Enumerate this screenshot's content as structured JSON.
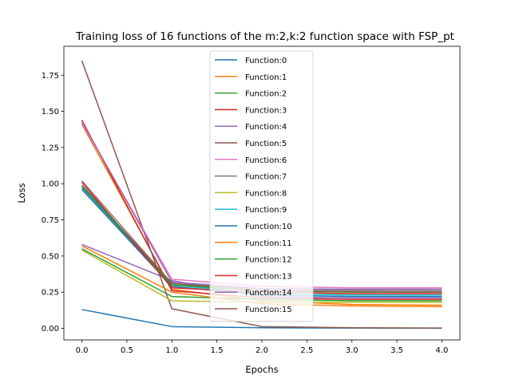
{
  "chart_data": {
    "type": "line",
    "title": "Training loss of 16 functions of the m:2,k:2 function space with FSP_pt",
    "xlabel": "Epochs",
    "ylabel": "Loss",
    "xlim": [
      -0.2,
      4.2
    ],
    "ylim": [
      -0.08,
      1.95
    ],
    "xticks": [
      "0.0",
      "0.5",
      "1.0",
      "1.5",
      "2.0",
      "2.5",
      "3.0",
      "3.5",
      "4.0"
    ],
    "yticks": [
      "0.00",
      "0.25",
      "0.50",
      "0.75",
      "1.00",
      "1.25",
      "1.50",
      "1.75"
    ],
    "grid": false,
    "legend_position": "upper-center",
    "x": [
      0,
      1,
      2,
      3,
      4
    ],
    "series": [
      {
        "name": "Function:0",
        "color": "#1f77b4",
        "values": [
          0.13,
          0.012,
          0.004,
          0.002,
          0.001
        ]
      },
      {
        "name": "Function:1",
        "color": "#ff7f0e",
        "values": [
          1.41,
          0.27,
          0.19,
          0.165,
          0.16
        ]
      },
      {
        "name": "Function:2",
        "color": "#2ca02c",
        "values": [
          0.55,
          0.22,
          0.2,
          0.19,
          0.19
        ]
      },
      {
        "name": "Function:3",
        "color": "#d62728",
        "values": [
          1.44,
          0.26,
          0.21,
          0.2,
          0.2
        ]
      },
      {
        "name": "Function:4",
        "color": "#9467bd",
        "values": [
          0.58,
          0.33,
          0.22,
          0.21,
          0.21
        ]
      },
      {
        "name": "Function:5",
        "color": "#8c564b",
        "values": [
          1.85,
          0.135,
          0.012,
          0.004,
          0.002
        ]
      },
      {
        "name": "Function:6",
        "color": "#e377c2",
        "values": [
          1.42,
          0.34,
          0.29,
          0.28,
          0.28
        ]
      },
      {
        "name": "Function:7",
        "color": "#7f7f7f",
        "values": [
          1.02,
          0.31,
          0.27,
          0.265,
          0.26
        ]
      },
      {
        "name": "Function:8",
        "color": "#bcbd22",
        "values": [
          0.54,
          0.19,
          0.18,
          0.18,
          0.18
        ]
      },
      {
        "name": "Function:9",
        "color": "#17becf",
        "values": [
          0.97,
          0.3,
          0.24,
          0.23,
          0.23
        ]
      },
      {
        "name": "Function:10",
        "color": "#1f77b4",
        "values": [
          0.96,
          0.29,
          0.23,
          0.22,
          0.22
        ]
      },
      {
        "name": "Function:11",
        "color": "#ff7f0e",
        "values": [
          0.57,
          0.25,
          0.17,
          0.155,
          0.15
        ]
      },
      {
        "name": "Function:12",
        "color": "#2ca02c",
        "values": [
          0.98,
          0.3,
          0.26,
          0.25,
          0.25
        ]
      },
      {
        "name": "Function:13",
        "color": "#d62728",
        "values": [
          1.01,
          0.28,
          0.25,
          0.24,
          0.24
        ]
      },
      {
        "name": "Function:14",
        "color": "#9467bd",
        "values": [
          1.43,
          0.32,
          0.275,
          0.27,
          0.27
        ]
      },
      {
        "name": "Function:15",
        "color": "#8c564b",
        "values": [
          0.99,
          0.31,
          0.26,
          0.255,
          0.25
        ]
      }
    ]
  }
}
